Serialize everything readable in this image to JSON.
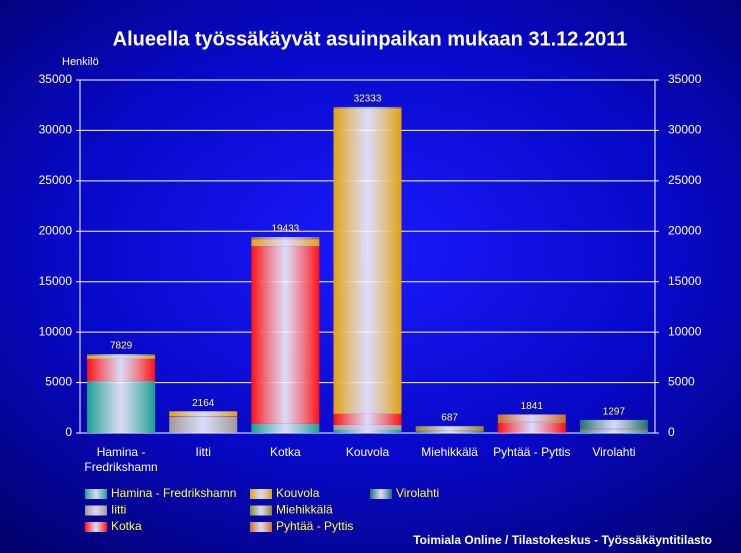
{
  "chart_data": {
    "type": "stacked_bar",
    "title": "Alueella työssäkäyvät asuinpaikan mukaan 31.12.2011",
    "y_label": "Henkilö",
    "source": "Toimiala Online / Tilastokeskus - Työssäkäyntitilasto",
    "categories": [
      "Hamina - Fredrikshamn",
      "Iitti",
      "Kotka",
      "Kouvola",
      "Miehikkälä",
      "Pyhtää - Pyttis",
      "Virolahti"
    ],
    "series": [
      {
        "name": "Hamina - Fredrikshamn",
        "color": "#18a090",
        "values": [
          5100,
          10,
          900,
          300,
          150,
          20,
          300
        ]
      },
      {
        "name": "Iitti",
        "color": "#9a9a9a",
        "values": [
          50,
          1600,
          20,
          500,
          2,
          5,
          2
        ]
      },
      {
        "name": "Kotka",
        "color": "#ff1010",
        "values": [
          2200,
          50,
          17600,
          1100,
          60,
          1000,
          60
        ]
      },
      {
        "name": "Kouvola",
        "color": "#e0a010",
        "values": [
          300,
          480,
          700,
          30300,
          40,
          100,
          30
        ]
      },
      {
        "name": "Miehikkälä",
        "color": "#8a8a20",
        "values": [
          100,
          5,
          40,
          80,
          420,
          4,
          40
        ]
      },
      {
        "name": "Pyhtää - Pyttis",
        "color": "#d06a20",
        "values": [
          30,
          9,
          160,
          30,
          5,
          700,
          5
        ]
      },
      {
        "name": "Virolahti",
        "color": "#1a7070",
        "values": [
          49,
          10,
          13,
          23,
          10,
          12,
          860
        ]
      }
    ],
    "totals": [
      7829,
      2164,
      19433,
      32333,
      687,
      1841,
      1297
    ],
    "ylim": [
      0,
      35000
    ],
    "yticks": [
      0,
      5000,
      10000,
      15000,
      20000,
      25000,
      30000,
      35000
    ],
    "y2lim": [
      0,
      35000
    ],
    "y2ticks": [
      0,
      5000,
      10000,
      15000,
      20000,
      25000,
      30000,
      35000
    ],
    "grid": true
  }
}
